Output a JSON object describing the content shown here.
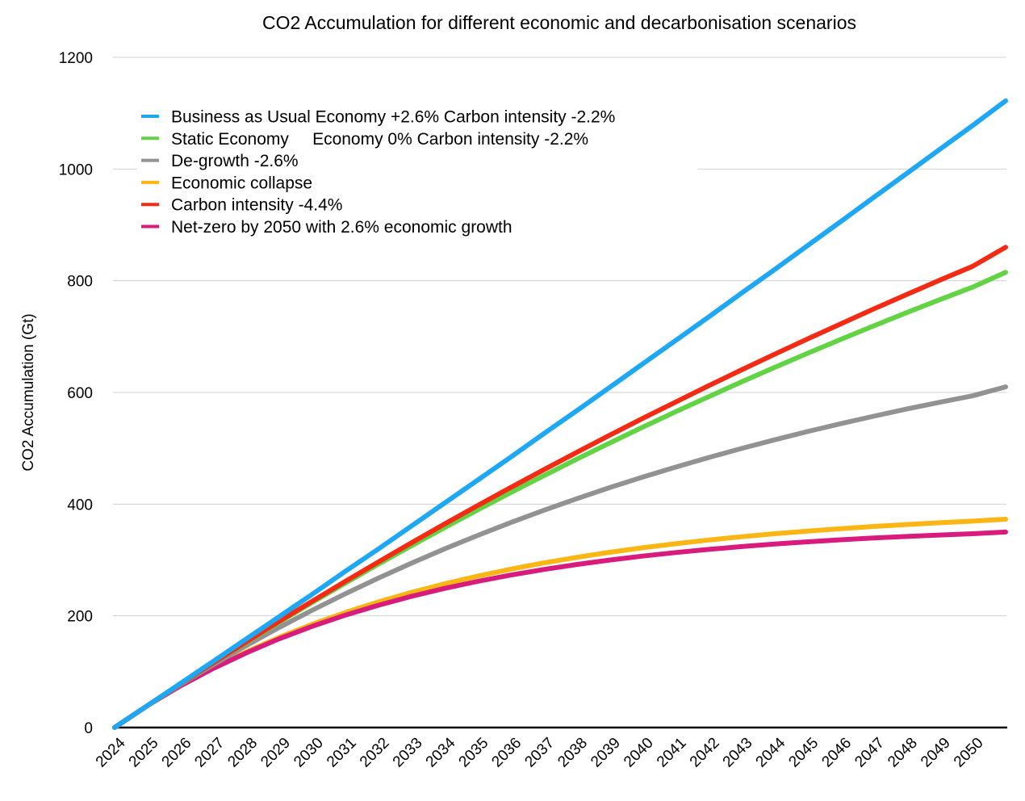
{
  "chart_data": {
    "type": "line",
    "title": "CO2 Accumulation for different economic and decarbonisation scenarios",
    "xlabel": "",
    "ylabel": "CO2 Accumulation (Gt)",
    "ylim": [
      0,
      1200
    ],
    "yticks": [
      "0",
      "200",
      "400",
      "600",
      "800",
      "1000",
      "1200"
    ],
    "ytick_values": [
      0,
      200,
      400,
      600,
      800,
      1000,
      1200
    ],
    "xtick_labels": [
      "2024",
      "2025",
      "2026",
      "2027",
      "2028",
      "2029",
      "2030",
      "2031",
      "2032",
      "2033",
      "2034",
      "2035",
      "2036",
      "2037",
      "2038",
      "2039",
      "2040",
      "2041",
      "2042",
      "2043",
      "2044",
      "2045",
      "2046",
      "2047",
      "2048",
      "2049",
      "2050"
    ],
    "x": [
      2024,
      2025,
      2026,
      2027,
      2028,
      2029,
      2030,
      2031,
      2032,
      2033,
      2034,
      2035,
      2036,
      2037,
      2038,
      2039,
      2040,
      2041,
      2042,
      2043,
      2044,
      2045,
      2046,
      2047,
      2048,
      2049,
      2050,
      2051
    ],
    "grid": true,
    "legend_position": "top-left",
    "series": [
      {
        "name": "Business as Usual Economy +2.6% Carbon intensity -2.2%",
        "color": "#1ea7f5",
        "values": [
          0,
          39.5,
          79.2,
          119,
          159,
          199,
          239,
          280,
          320,
          361,
          402,
          443,
          484,
          526,
          567,
          609,
          651,
          693,
          735,
          778,
          820,
          863,
          906,
          949,
          992,
          1035,
          1078,
          1122
        ]
      },
      {
        "name": "Static Economy     Economy 0% Carbon intensity -2.2%",
        "color": "#62d444",
        "values": [
          0,
          39.5,
          78.1,
          115.9,
          152.8,
          189,
          224.4,
          258.9,
          292.7,
          325.7,
          358,
          389.6,
          420.6,
          450.8,
          480.5,
          509.4,
          537.7,
          565.4,
          592.4,
          618.9,
          644.8,
          670.1,
          694.8,
          719.1,
          742.8,
          766,
          788.6,
          815
        ]
      },
      {
        "name": "De-growth -2.6%",
        "color": "#929292",
        "values": [
          0,
          39.5,
          77.1,
          112.9,
          147,
          179.5,
          210.3,
          239.7,
          267.7,
          294.4,
          319.8,
          343.9,
          367,
          388.8,
          409.6,
          429.5,
          448.3,
          466.3,
          483.4,
          499.7,
          515.2,
          530,
          544.1,
          557.4,
          570.2,
          582.3,
          593.9,
          610
        ]
      },
      {
        "name": "Economic collapse",
        "color": "#fbb614",
        "values": [
          0,
          39.5,
          75.1,
          107,
          135.8,
          161.8,
          185.1,
          206.1,
          225,
          242,
          257.3,
          271,
          283.5,
          294.6,
          304.6,
          313.7,
          321.8,
          329.1,
          335.7,
          341.6,
          347,
          351.8,
          356.1,
          360,
          363.5,
          366.6,
          369.5,
          373
        ]
      },
      {
        "name": "Carbon intensity -4.4%",
        "color": "#f42b14",
        "values": [
          0,
          39.5,
          78.3,
          116.3,
          153.8,
          190.5,
          226.5,
          262,
          296.7,
          330.9,
          364.5,
          397.4,
          429.7,
          461.5,
          492.6,
          523.4,
          553.4,
          582.8,
          612,
          640.5,
          668.4,
          695.8,
          722.8,
          749.3,
          775.3,
          800.9,
          825.9,
          860
        ]
      },
      {
        "name": "Net-zero by 2050 with 2.6% economic growth",
        "color": "#d81b7d",
        "values": [
          0,
          39.5,
          74.7,
          106.1,
          133.9,
          159.2,
          181.5,
          201.4,
          219.1,
          235,
          249.1,
          261.7,
          272.9,
          283,
          291.9,
          299.8,
          307,
          313.3,
          319,
          324,
          328.5,
          332.5,
          336.1,
          339.3,
          342.1,
          344.7,
          347,
          350
        ]
      }
    ]
  }
}
